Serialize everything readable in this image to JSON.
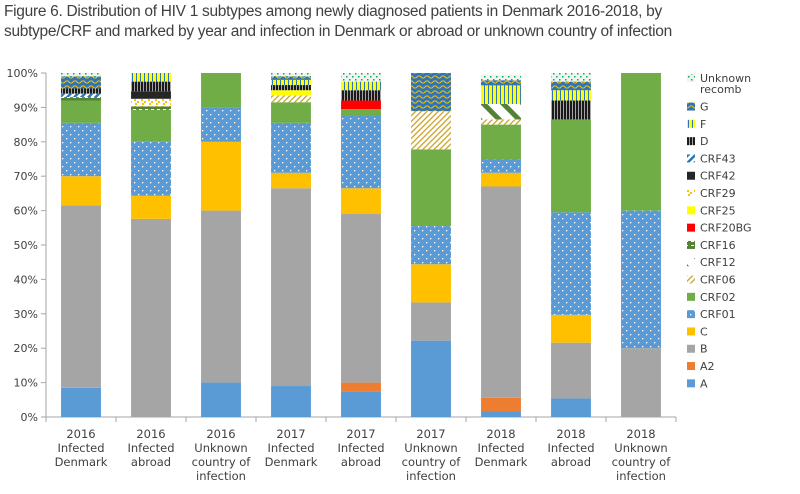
{
  "chart_data": {
    "type": "bar",
    "stacked": true,
    "title_lines": [
      "Figure 6. Distribution of HIV 1 subtypes among newly diagnosed patients in Denmark 2016-2018, by",
      "subtype/CRF and marked by year and infection in Denmark or abroad or unknown country of infection"
    ],
    "xlabel": "",
    "ylabel": "",
    "ylim": [
      0,
      100
    ],
    "y_ticks": [
      "0%",
      "10%",
      "20%",
      "30%",
      "40%",
      "50%",
      "60%",
      "70%",
      "80%",
      "90%",
      "100%"
    ],
    "grid": false,
    "legend_position": "right",
    "categories": [
      [
        "2016",
        "Infected",
        "Denmark"
      ],
      [
        "2016",
        "Infected",
        "abroad"
      ],
      [
        "2016",
        "Unknown",
        "country of",
        "infection"
      ],
      [
        "2017",
        "Infected",
        "Denmark"
      ],
      [
        "2017",
        "Infected",
        "abroad"
      ],
      [
        "2017",
        "Unknown",
        "country of",
        "infection"
      ],
      [
        "2018",
        "Infected",
        "Denmark"
      ],
      [
        "2018",
        "Infected",
        "abroad"
      ],
      [
        "2018",
        "Unknown",
        "country of",
        "infection"
      ]
    ],
    "series": [
      {
        "name": "A",
        "color": "#5b9bd5",
        "pattern": "solid",
        "values": [
          8.5,
          0,
          10,
          9,
          7.5,
          22.2,
          1.6,
          5.4,
          0
        ]
      },
      {
        "name": "A2",
        "color": "#ed7d31",
        "pattern": "solid",
        "values": [
          0,
          0,
          0,
          0,
          2.5,
          0,
          4.0,
          0,
          0
        ]
      },
      {
        "name": "B",
        "color": "#a5a5a5",
        "pattern": "solid",
        "values": [
          53,
          57.6,
          50,
          57.5,
          49,
          11.1,
          61.4,
          16.2,
          20
        ]
      },
      {
        "name": "C",
        "color": "#ffc000",
        "pattern": "solid",
        "values": [
          8.5,
          6.7,
          20,
          4.5,
          7.5,
          11.1,
          4.0,
          8.1,
          0
        ]
      },
      {
        "name": "CRF01",
        "color": "#5b9bd5",
        "pattern": "dots",
        "values": [
          15.5,
          15.7,
          10,
          14.5,
          21,
          11.1,
          4.0,
          29.8,
          40
        ]
      },
      {
        "name": "CRF02",
        "color": "#70ad47",
        "pattern": "solid",
        "values": [
          6.5,
          9.3,
          10,
          6,
          2,
          22.3,
          10,
          27,
          40
        ]
      },
      {
        "name": "CRF06",
        "color": "#c9a227",
        "pattern": "diag-thin",
        "values": [
          0,
          0,
          0,
          2,
          0,
          11.1,
          1.5,
          0,
          0
        ]
      },
      {
        "name": "CRF12",
        "color": "#548235",
        "pattern": "diag-wide",
        "values": [
          0,
          0,
          0,
          0,
          0,
          0,
          4.5,
          0,
          0
        ]
      },
      {
        "name": "CRF16",
        "color": "#548235",
        "pattern": "grid",
        "values": [
          1,
          1,
          0,
          0,
          0,
          0,
          0,
          0,
          0
        ]
      },
      {
        "name": "CRF20BG",
        "color": "#ff0000",
        "pattern": "solid",
        "values": [
          0,
          0,
          0,
          0,
          2.5,
          0,
          0,
          0,
          0
        ]
      },
      {
        "name": "CRF25",
        "color": "#ffff00",
        "pattern": "solid",
        "values": [
          0,
          0,
          0,
          1.5,
          0,
          0,
          0,
          0,
          0
        ]
      },
      {
        "name": "CRF29",
        "color": "#ffc000",
        "pattern": "confetti",
        "values": [
          0,
          2.2,
          0,
          0,
          0,
          0,
          0,
          0,
          0
        ]
      },
      {
        "name": "CRF42",
        "color": "#262626",
        "pattern": "solid",
        "values": [
          0,
          2.2,
          0,
          0,
          0,
          0,
          0,
          0,
          0
        ]
      },
      {
        "name": "CRF43",
        "color": "#2e75b6",
        "pattern": "diag-blue",
        "values": [
          1,
          0,
          0,
          0,
          0,
          0,
          0,
          0,
          0
        ]
      },
      {
        "name": "D",
        "color": "#262626",
        "pattern": "vlines-dark",
        "values": [
          1.5,
          2.8,
          0,
          1.5,
          3,
          0,
          0,
          5.5,
          0
        ]
      },
      {
        "name": "F",
        "color": "#ffff00",
        "pattern": "vlines-yellow",
        "values": [
          0,
          2.5,
          0,
          1.5,
          2.5,
          0,
          5.4,
          3,
          0
        ]
      },
      {
        "name": "G",
        "color": "#2e75b6",
        "pattern": "wave",
        "values": [
          3.5,
          0,
          0,
          1,
          0,
          11.1,
          1.5,
          2.5,
          0
        ]
      },
      {
        "name": "Unknown recomb",
        "color": "#00b050",
        "pattern": "sparse-dots",
        "values": [
          1,
          0,
          0,
          1,
          2.5,
          0,
          1.6,
          2.5,
          0
        ]
      }
    ],
    "legend_order": [
      "Unknown recomb",
      "G",
      "F",
      "D",
      "CRF43",
      "CRF42",
      "CRF29",
      "CRF25",
      "CRF20BG",
      "CRF16",
      "CRF12",
      "CRF06",
      "CRF02",
      "CRF01",
      "C",
      "B",
      "A2",
      "A"
    ],
    "legend_labels": {
      "Unknown recomb": [
        "Unknown",
        "recomb"
      ]
    }
  }
}
